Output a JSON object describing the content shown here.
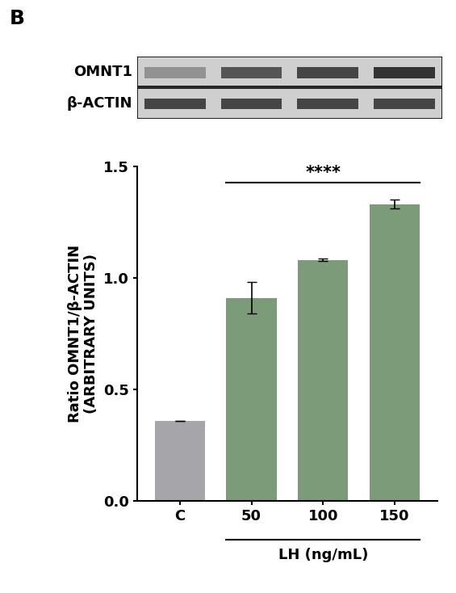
{
  "chart_data": {
    "type": "bar",
    "panel_label": "B",
    "blot_labels": [
      "OMNT1",
      "β-ACTIN"
    ],
    "y_label": "Ratio OMNT1/β-ACTIN\n(ARBITRARY UNITS)",
    "categories": [
      "C",
      "50",
      "100",
      "150"
    ],
    "values": [
      0.36,
      0.91,
      1.08,
      1.33
    ],
    "errors": [
      0.0,
      0.07,
      0.005,
      0.02
    ],
    "colors": [
      "#a5a5aa",
      "#7b9b79",
      "#7b9b79",
      "#7b9b79"
    ],
    "group_label": "LH (ng/mL)",
    "significance": "****",
    "ylim": [
      0,
      1.5
    ],
    "yticks": [
      {
        "value": 0,
        "label": "0.0"
      },
      {
        "value": 0.5,
        "label": "0.5"
      },
      {
        "value": 1.0,
        "label": "1.0"
      },
      {
        "value": 1.5,
        "label": "1.5"
      }
    ],
    "grid": false
  }
}
